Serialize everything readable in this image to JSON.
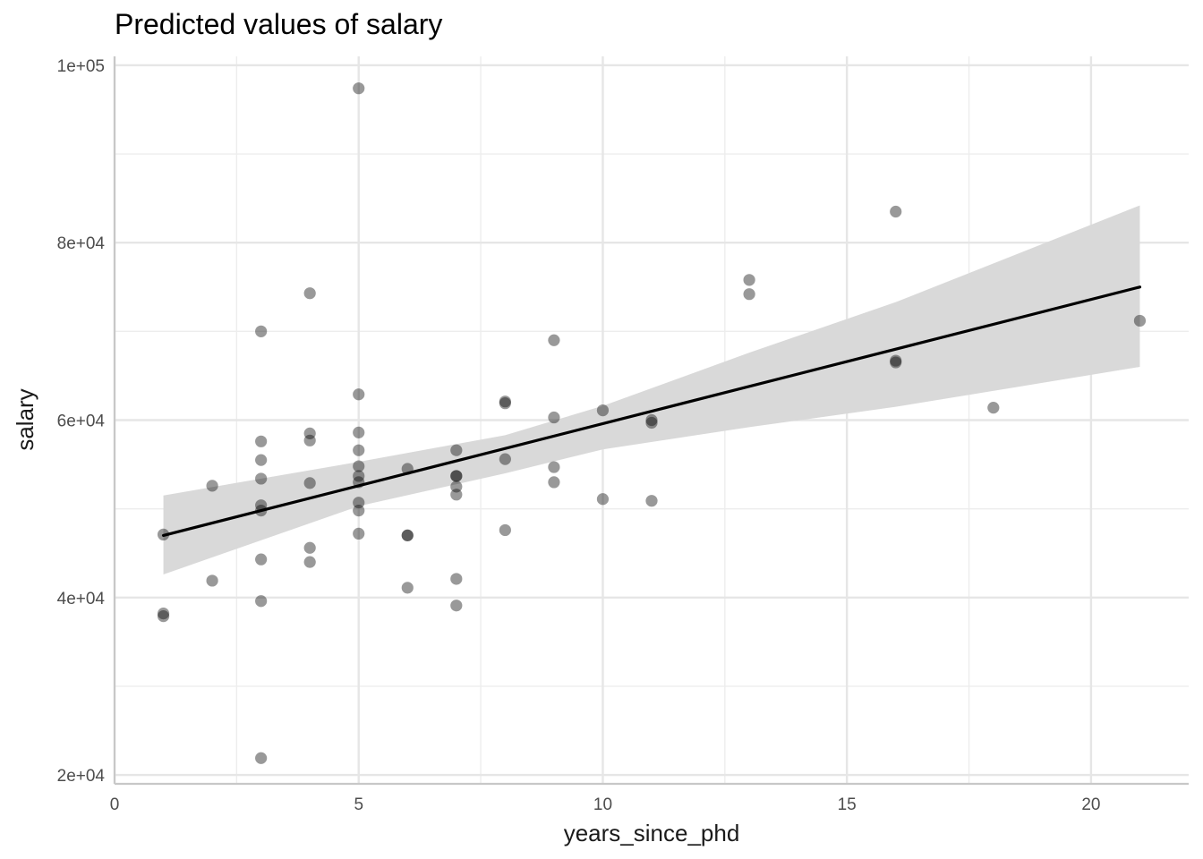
{
  "chart_data": {
    "type": "scatter",
    "title": "Predicted values of salary",
    "xlabel": "years_since_phd",
    "ylabel": "salary",
    "xlim": [
      0,
      22
    ],
    "ylim": [
      19000,
      101000
    ],
    "x_major_ticks": [
      0,
      5,
      10,
      15,
      20
    ],
    "x_minor_ticks": [
      2.5,
      7.5,
      12.5,
      17.5
    ],
    "y_major_ticks": [
      20000,
      40000,
      60000,
      80000,
      100000
    ],
    "y_minor_ticks": [
      30000,
      50000,
      70000,
      90000
    ],
    "x_tick_labels": [
      "0",
      "5",
      "10",
      "15",
      "20"
    ],
    "y_tick_labels": [
      "2e+04",
      "4e+04",
      "6e+04",
      "8e+04",
      "1e+05"
    ],
    "grid": true,
    "point_color": "#000000",
    "point_opacity": 0.4,
    "ribbon_color": "#d9d9d9",
    "line_color": "#000000",
    "fit_line": {
      "x": [
        1,
        21
      ],
      "y": [
        47000,
        75000
      ]
    },
    "confidence_band": {
      "x": [
        1,
        5,
        8,
        10,
        13,
        16,
        21
      ],
      "lower": [
        42600,
        50300,
        54000,
        56700,
        59200,
        61500,
        66000
      ],
      "upper": [
        51500,
        55300,
        58300,
        61600,
        67600,
        73300,
        84200
      ]
    },
    "points": [
      {
        "x": 1,
        "y": 47100
      },
      {
        "x": 1,
        "y": 38200
      },
      {
        "x": 1,
        "y": 37900
      },
      {
        "x": 2,
        "y": 52600
      },
      {
        "x": 2,
        "y": 41900
      },
      {
        "x": 3,
        "y": 70000
      },
      {
        "x": 3,
        "y": 57600
      },
      {
        "x": 3,
        "y": 55500
      },
      {
        "x": 3,
        "y": 53400
      },
      {
        "x": 3,
        "y": 50400
      },
      {
        "x": 3,
        "y": 49800
      },
      {
        "x": 3,
        "y": 44300
      },
      {
        "x": 3,
        "y": 39600
      },
      {
        "x": 3,
        "y": 21900
      },
      {
        "x": 4,
        "y": 74300
      },
      {
        "x": 4,
        "y": 58500
      },
      {
        "x": 4,
        "y": 57700
      },
      {
        "x": 4,
        "y": 52900
      },
      {
        "x": 4,
        "y": 45600
      },
      {
        "x": 4,
        "y": 44000
      },
      {
        "x": 5,
        "y": 97400
      },
      {
        "x": 5,
        "y": 62900
      },
      {
        "x": 5,
        "y": 58600
      },
      {
        "x": 5,
        "y": 56600
      },
      {
        "x": 5,
        "y": 54800
      },
      {
        "x": 5,
        "y": 53700
      },
      {
        "x": 5,
        "y": 53000
      },
      {
        "x": 5,
        "y": 50700
      },
      {
        "x": 5,
        "y": 49800
      },
      {
        "x": 5,
        "y": 47200
      },
      {
        "x": 6,
        "y": 54500
      },
      {
        "x": 6,
        "y": 47000
      },
      {
        "x": 6,
        "y": 47000
      },
      {
        "x": 6,
        "y": 41100
      },
      {
        "x": 7,
        "y": 56600
      },
      {
        "x": 7,
        "y": 53700
      },
      {
        "x": 7,
        "y": 53700
      },
      {
        "x": 7,
        "y": 52500
      },
      {
        "x": 7,
        "y": 51600
      },
      {
        "x": 7,
        "y": 42100
      },
      {
        "x": 7,
        "y": 39100
      },
      {
        "x": 8,
        "y": 62100
      },
      {
        "x": 8,
        "y": 61900
      },
      {
        "x": 8,
        "y": 55600
      },
      {
        "x": 8,
        "y": 47600
      },
      {
        "x": 9,
        "y": 69000
      },
      {
        "x": 9,
        "y": 60300
      },
      {
        "x": 9,
        "y": 54700
      },
      {
        "x": 9,
        "y": 53000
      },
      {
        "x": 10,
        "y": 61100
      },
      {
        "x": 10,
        "y": 51100
      },
      {
        "x": 11,
        "y": 60000
      },
      {
        "x": 11,
        "y": 59700
      },
      {
        "x": 11,
        "y": 50900
      },
      {
        "x": 13,
        "y": 75800
      },
      {
        "x": 13,
        "y": 74200
      },
      {
        "x": 16,
        "y": 83500
      },
      {
        "x": 16,
        "y": 66700
      },
      {
        "x": 16,
        "y": 66500
      },
      {
        "x": 18,
        "y": 61400
      },
      {
        "x": 21,
        "y": 71200
      }
    ]
  }
}
